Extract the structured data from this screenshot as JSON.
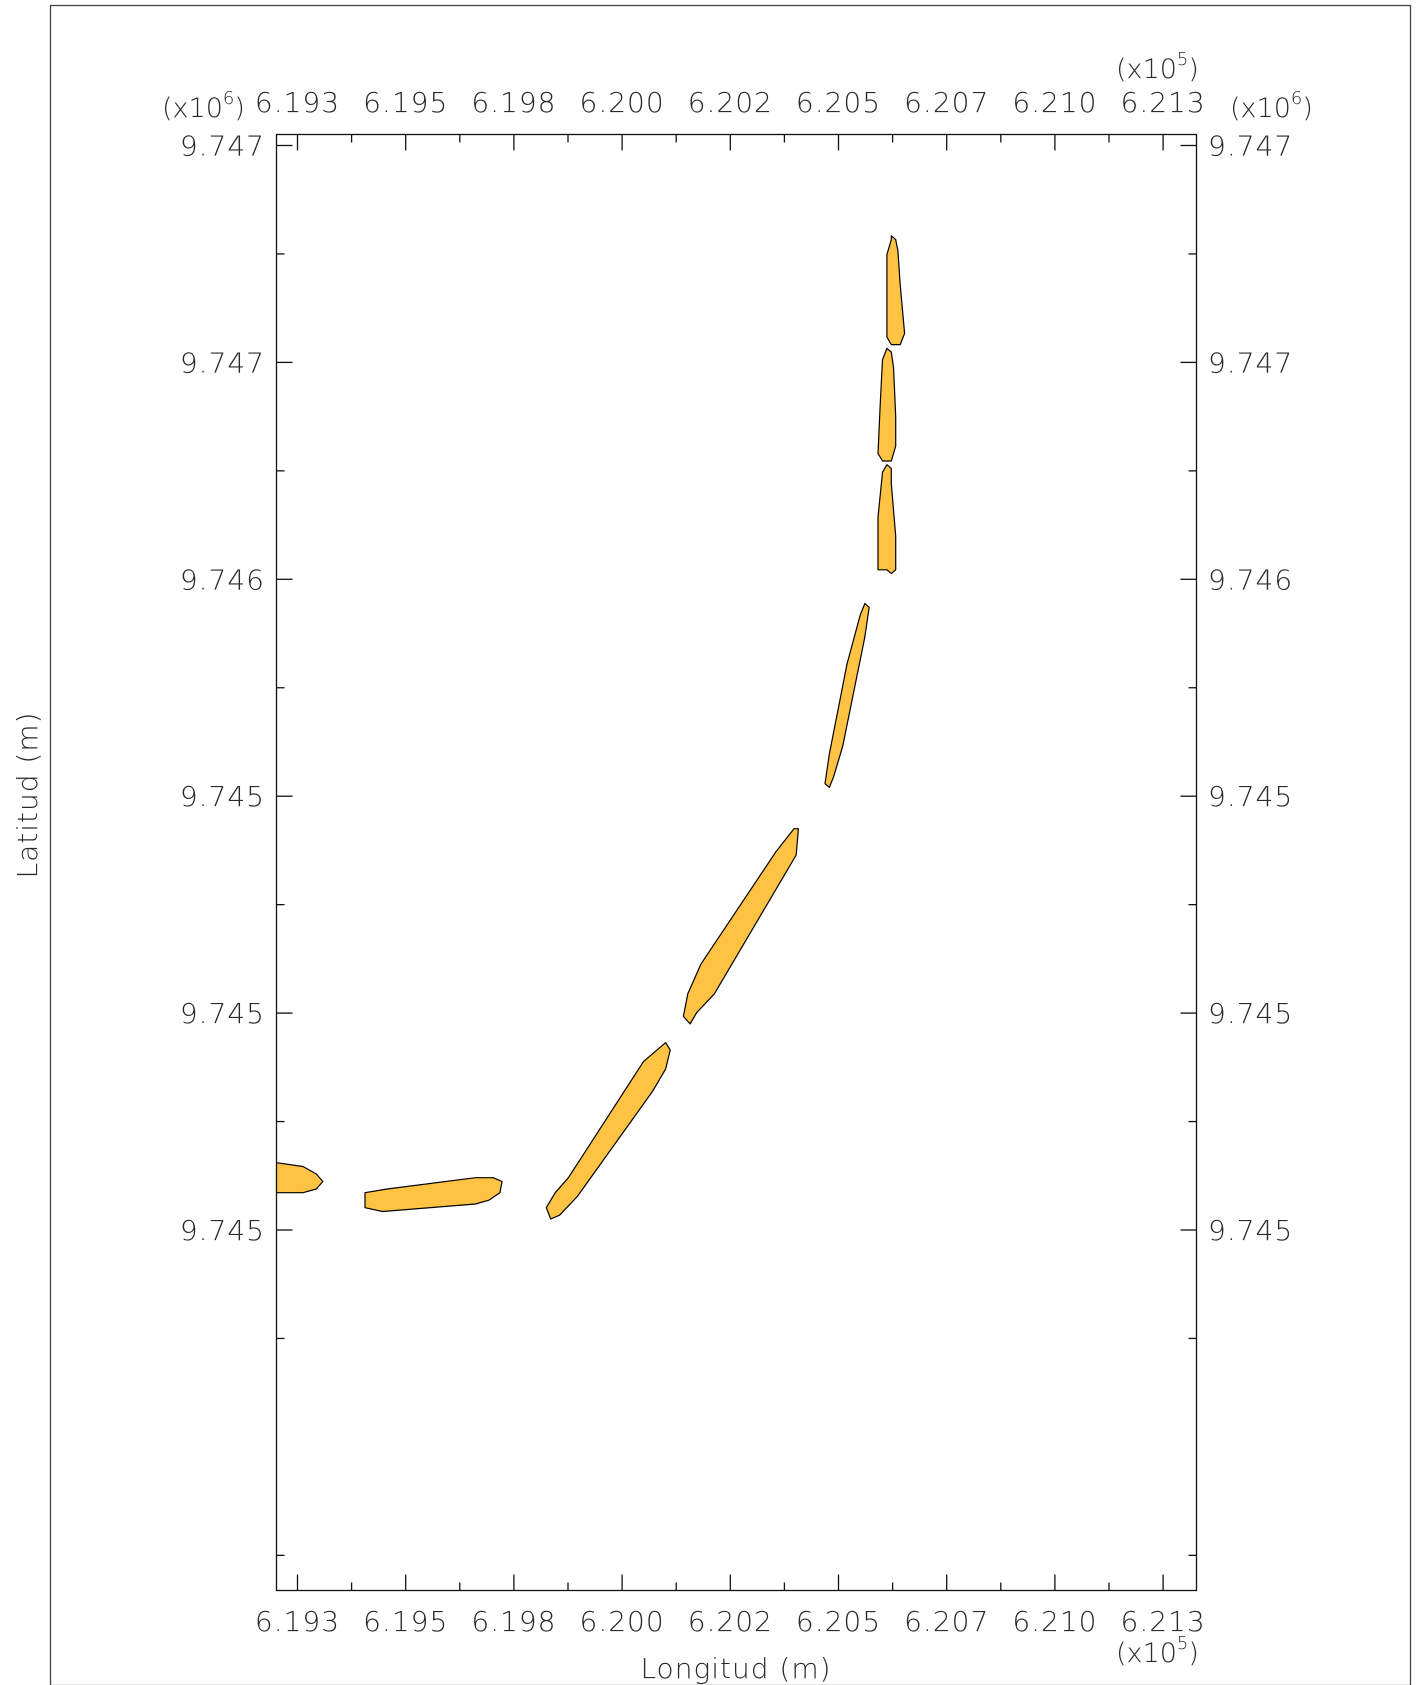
{
  "chart_data": {
    "type": "map",
    "xlabel": "Longitud (m)",
    "ylabel": "Latitud (m)",
    "x_multiplier": "(x10^5)",
    "y_multiplier": "(x10^6)",
    "x_ticks": [
      "6.193",
      "6.195",
      "6.198",
      "6.200",
      "6.202",
      "6.205",
      "6.207",
      "6.210",
      "6.213"
    ],
    "y_ticks": [
      "9.747",
      "9.747",
      "9.746",
      "9.745",
      "9.745",
      "9.745"
    ],
    "xlim": [
      6.1927,
      6.2135
    ],
    "ylim": [
      9.74337,
      9.74725
    ],
    "grid": false,
    "fill_color": "#FFC344",
    "stroke_color": "#000000",
    "polygons": [
      {
        "points": [
          [
            6.1927,
            9.74451
          ],
          [
            6.1933,
            9.7445
          ],
          [
            6.1936,
            9.74448
          ],
          [
            6.19375,
            9.74446
          ],
          [
            6.1936,
            9.74444
          ],
          [
            6.1933,
            9.74443
          ],
          [
            6.1927,
            9.74443
          ]
        ]
      },
      {
        "points": [
          [
            6.1947,
            9.74443
          ],
          [
            6.1952,
            9.74444
          ],
          [
            6.1972,
            9.74447
          ],
          [
            6.1976,
            9.74447
          ],
          [
            6.1978,
            9.74446
          ],
          [
            6.19775,
            9.74443
          ],
          [
            6.1975,
            9.74441
          ],
          [
            6.1972,
            9.7444
          ],
          [
            6.1951,
            9.74438
          ],
          [
            6.1947,
            9.74439
          ]
        ]
      },
      {
        "points": [
          [
            6.1988,
            9.74439
          ],
          [
            6.199,
            9.74443
          ],
          [
            6.1993,
            9.74447
          ],
          [
            6.201,
            9.74478
          ],
          [
            6.2015,
            9.74483
          ],
          [
            6.2016,
            9.74481
          ],
          [
            6.2015,
            9.74476
          ],
          [
            6.2012,
            9.7447
          ],
          [
            6.1995,
            9.74442
          ],
          [
            6.1991,
            9.74437
          ],
          [
            6.1989,
            9.74436
          ]
        ]
      },
      {
        "points": [
          [
            6.2019,
            9.7449
          ],
          [
            6.202,
            9.74496
          ],
          [
            6.2023,
            9.74504
          ],
          [
            6.204,
            9.74534
          ],
          [
            6.2044,
            9.7454
          ],
          [
            6.2045,
            9.7454
          ],
          [
            6.20445,
            9.74533
          ],
          [
            6.2041,
            9.74526
          ],
          [
            6.2026,
            9.74496
          ],
          [
            6.2022,
            9.74491
          ],
          [
            6.20205,
            9.74488
          ]
        ]
      },
      {
        "points": [
          [
            6.2051,
            9.74552
          ],
          [
            6.2052,
            9.7456
          ],
          [
            6.2056,
            9.74584
          ],
          [
            6.2059,
            9.74597
          ],
          [
            6.206,
            9.746
          ],
          [
            6.2061,
            9.74599
          ],
          [
            6.206,
            9.74591
          ],
          [
            6.2055,
            9.74562
          ],
          [
            6.2053,
            9.74554
          ],
          [
            6.2052,
            9.74551
          ]
        ]
      },
      {
        "points": [
          [
            6.2063,
            9.74609
          ],
          [
            6.2063,
            9.74623
          ],
          [
            6.2064,
            9.74635
          ],
          [
            6.2065,
            9.74637
          ],
          [
            6.2066,
            9.74636
          ],
          [
            6.2066,
            9.74632
          ],
          [
            6.2067,
            9.74618
          ],
          [
            6.2067,
            9.74609
          ],
          [
            6.2066,
            9.74608
          ],
          [
            6.2065,
            9.74609
          ]
        ]
      },
      {
        "points": [
          [
            6.2063,
            9.7464
          ],
          [
            6.20635,
            9.74653
          ],
          [
            6.2064,
            9.74665
          ],
          [
            6.2065,
            9.74668
          ],
          [
            6.2066,
            9.74667
          ],
          [
            6.20665,
            9.74663
          ],
          [
            6.2067,
            9.7465
          ],
          [
            6.2067,
            9.74642
          ],
          [
            6.2066,
            9.74638
          ],
          [
            6.2064,
            9.74638
          ]
        ]
      },
      {
        "points": [
          [
            6.2065,
            9.74671
          ],
          [
            6.2065,
            9.74693
          ],
          [
            6.2066,
            9.74697
          ],
          [
            6.2066,
            9.74698
          ],
          [
            6.2067,
            9.74697
          ],
          [
            6.20675,
            9.74694
          ],
          [
            6.2068,
            9.74685
          ],
          [
            6.2069,
            9.74672
          ],
          [
            6.2068,
            9.74669
          ],
          [
            6.2066,
            9.74669
          ]
        ]
      }
    ]
  }
}
